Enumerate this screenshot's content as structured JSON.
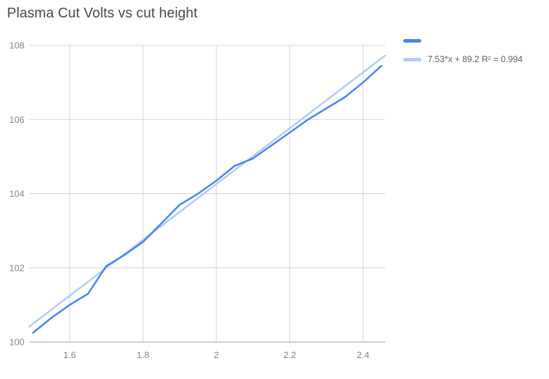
{
  "title": "Plasma Cut Volts vs cut height",
  "legend": {
    "series_label": "",
    "trendline_label": "7.53*x + 89.2 R² = 0.994"
  },
  "colors": {
    "series": "#4285f4",
    "trendline": "#aecbfa",
    "grid": "#d4d4d4",
    "axis": "#9aa0a6",
    "tick": "#80868b",
    "title": "#45494d",
    "legend_text": "#5f6368",
    "background": "#ffffff"
  },
  "chart_data": {
    "type": "line",
    "title": "Plasma Cut Volts vs cut height",
    "x": [
      1.5,
      1.55,
      1.6,
      1.65,
      1.7,
      1.75,
      1.8,
      1.85,
      1.9,
      1.95,
      2.0,
      2.05,
      2.1,
      2.15,
      2.2,
      2.25,
      2.3,
      2.35,
      2.4,
      2.45
    ],
    "series": [
      {
        "name": "",
        "values": [
          100.25,
          100.65,
          101.0,
          101.3,
          102.05,
          102.35,
          102.7,
          103.2,
          103.7,
          104.0,
          104.35,
          104.75,
          104.95,
          105.3,
          105.65,
          106.0,
          106.3,
          106.6,
          107.0,
          107.45
        ]
      }
    ],
    "trendline": {
      "slope": 7.53,
      "intercept": 89.2,
      "r_squared": 0.994,
      "label": "7.53*x + 89.2 R² = 0.994"
    },
    "xlabel": "",
    "ylabel": "",
    "xlim": [
      1.49,
      2.46
    ],
    "ylim": [
      100,
      108
    ],
    "x_ticks": [
      1.6,
      1.8,
      2,
      2.2,
      2.4
    ],
    "y_ticks": [
      100,
      102,
      104,
      106,
      108
    ],
    "grid": true,
    "legend_position": "right-top"
  }
}
